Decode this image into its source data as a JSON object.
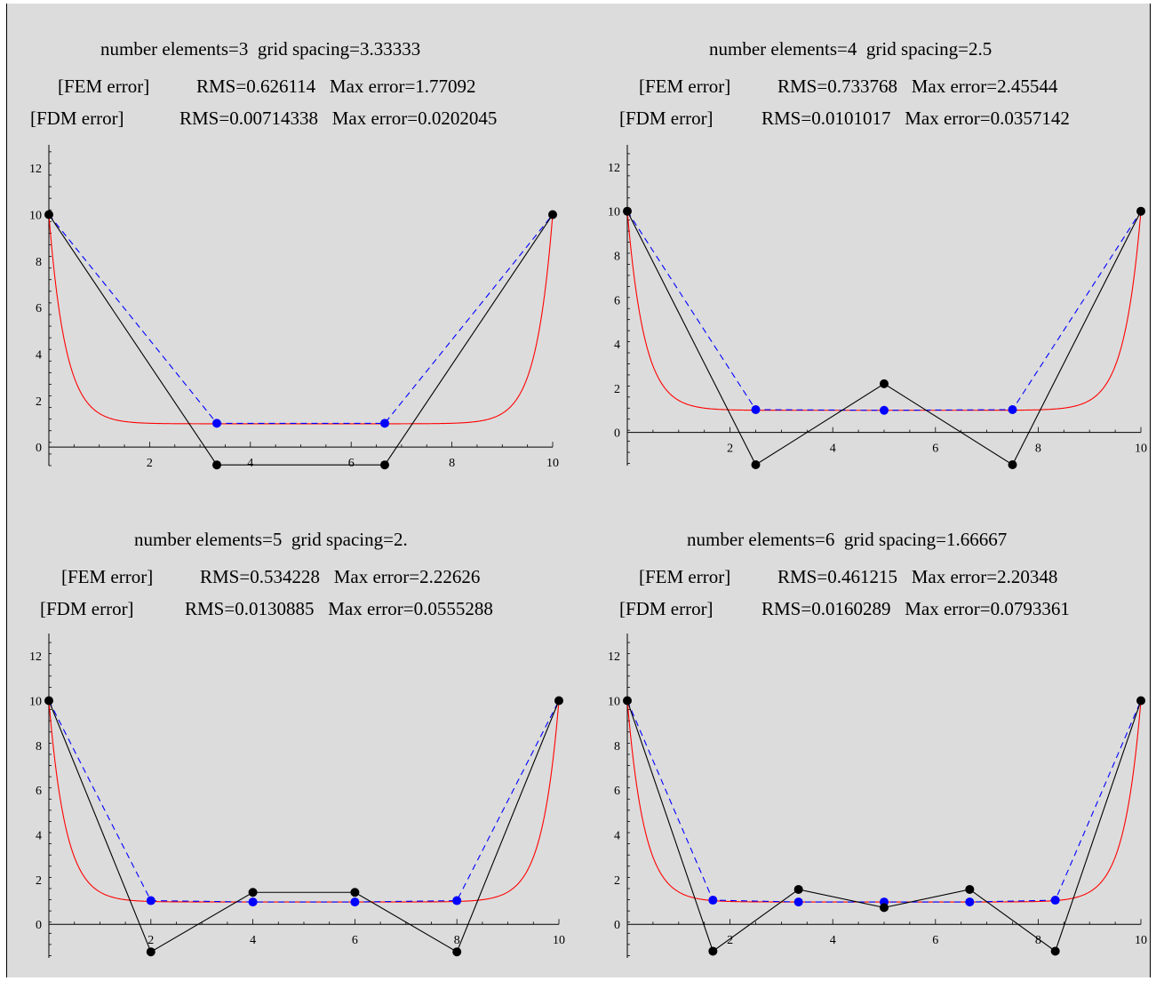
{
  "colors": {
    "exact": "#ff0000",
    "fem": "#000000",
    "fdm": "#0000ff",
    "background": "#dcdcdc"
  },
  "chart_data": [
    {
      "type": "line",
      "title": "number elements=3  grid spacing=3.33333",
      "fem_line": {
        "label": "[FEM error]",
        "stats": "RMS=0.626114   Max error=1.77092"
      },
      "fdm_line": {
        "label": "[FDM error]",
        "stats": "RMS=0.00714338   Max error=0.0202045"
      },
      "xlim": [
        0,
        10
      ],
      "ylim": [
        -0.8,
        13
      ],
      "x_ticks": [
        2,
        4,
        6,
        8,
        10
      ],
      "y_ticks": [
        0,
        2,
        4,
        6,
        8,
        10,
        12
      ],
      "series": [
        {
          "x": [
            0,
            3.33333,
            6.66667,
            10
          ],
          "values": [
            10,
            -0.77,
            -0.77,
            10
          ]
        },
        {
          "x": [
            0,
            3.33333,
            6.66667,
            10
          ],
          "values": [
            10,
            1.02,
            1.02,
            10
          ]
        }
      ]
    },
    {
      "type": "line",
      "title": "number elements=4  grid spacing=2.5",
      "fem_line": {
        "label": "[FEM error]",
        "stats": "RMS=0.733768   Max error=2.45544"
      },
      "fdm_line": {
        "label": "[FDM error]",
        "stats": "RMS=0.0101017   Max error=0.0357142"
      },
      "xlim": [
        0,
        10
      ],
      "ylim": [
        -1.5,
        13
      ],
      "x_ticks": [
        2,
        4,
        6,
        8,
        10
      ],
      "y_ticks": [
        0,
        2,
        4,
        6,
        8,
        10,
        12
      ],
      "series": [
        {
          "x": [
            0,
            2.5,
            5,
            7.5,
            10
          ],
          "values": [
            10,
            -1.46,
            2.2,
            -1.46,
            10
          ]
        },
        {
          "x": [
            0,
            2.5,
            5,
            7.5,
            10
          ],
          "values": [
            10,
            1.03,
            1.0,
            1.03,
            10
          ]
        }
      ]
    },
    {
      "type": "line",
      "title": "number elements=5  grid spacing=2.",
      "fem_line": {
        "label": "[FEM error]",
        "stats": "RMS=0.534228   Max error=2.22626"
      },
      "fdm_line": {
        "label": "[FDM error]",
        "stats": "RMS=0.0130885   Max error=0.0555288"
      },
      "xlim": [
        0,
        10
      ],
      "ylim": [
        -1.5,
        13
      ],
      "x_ticks": [
        2,
        4,
        6,
        8,
        10
      ],
      "y_ticks": [
        0,
        2,
        4,
        6,
        8,
        10,
        12
      ],
      "series": [
        {
          "x": [
            0,
            2,
            4,
            6,
            8,
            10
          ],
          "values": [
            10,
            -1.23,
            1.43,
            1.43,
            -1.23,
            10
          ]
        },
        {
          "x": [
            0,
            2,
            4,
            6,
            8,
            10
          ],
          "values": [
            10,
            1.06,
            1.0,
            1.0,
            1.06,
            10
          ]
        }
      ]
    },
    {
      "type": "line",
      "title": "number elements=6  grid spacing=1.66667",
      "fem_line": {
        "label": "[FEM error]",
        "stats": "RMS=0.461215   Max error=2.20348"
      },
      "fdm_line": {
        "label": "[FDM error]",
        "stats": "RMS=0.0160289   Max error=0.0793361"
      },
      "xlim": [
        0,
        10
      ],
      "ylim": [
        -1.5,
        13
      ],
      "x_ticks": [
        2,
        4,
        6,
        8,
        10
      ],
      "y_ticks": [
        0,
        2,
        4,
        6,
        8,
        10,
        12
      ],
      "series": [
        {
          "x": [
            0,
            1.66667,
            3.33333,
            5,
            6.66667,
            8.33333,
            10
          ],
          "values": [
            10,
            -1.2,
            1.56,
            0.75,
            1.56,
            -1.2,
            10
          ]
        },
        {
          "x": [
            0,
            1.66667,
            3.33333,
            5,
            6.66667,
            8.33333,
            10
          ],
          "values": [
            10,
            1.08,
            1.0,
            1.0,
            1.0,
            1.08,
            10
          ]
        }
      ]
    }
  ]
}
